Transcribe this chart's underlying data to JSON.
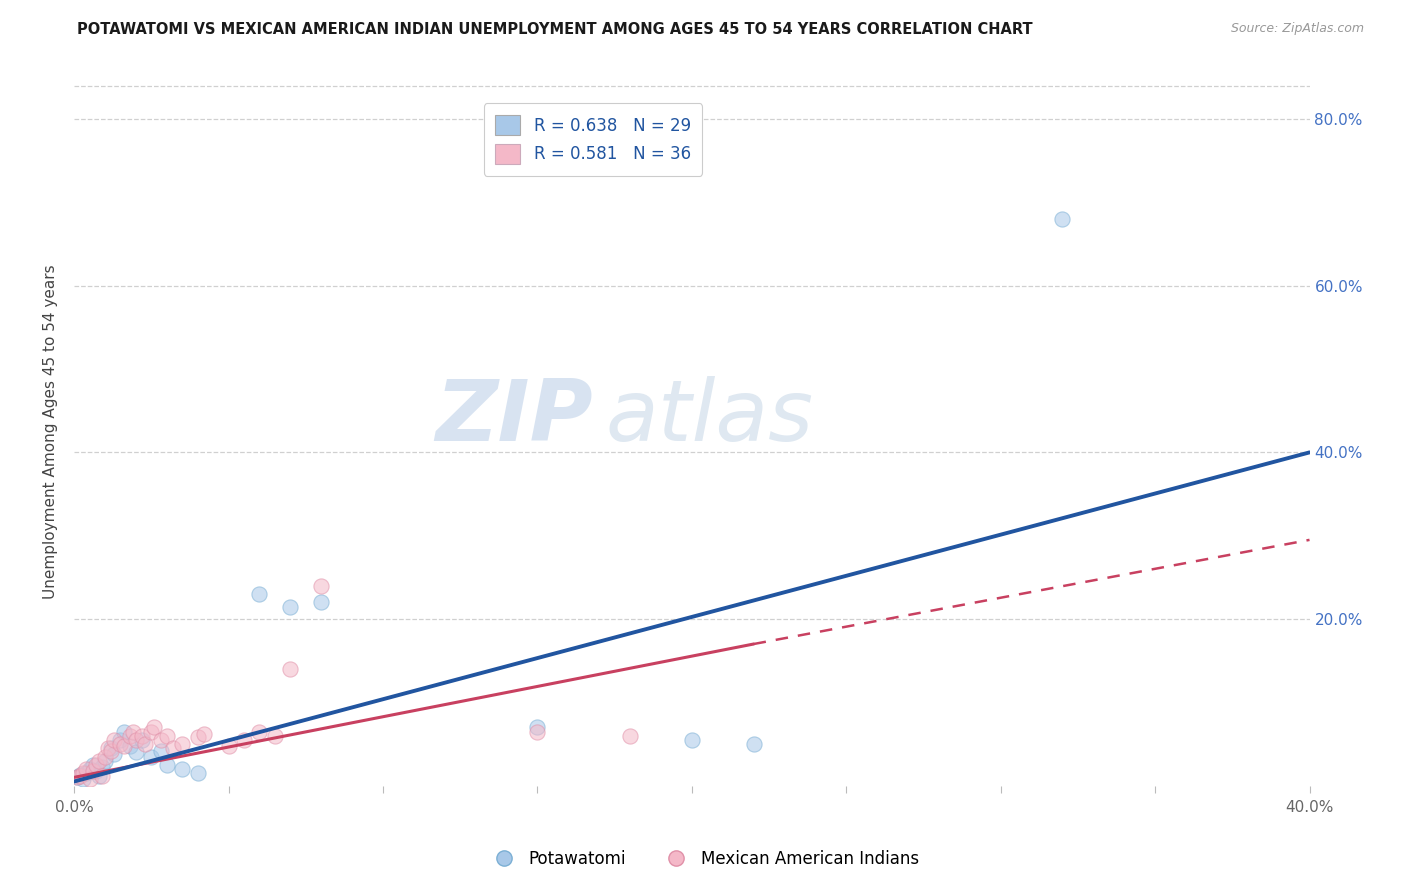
{
  "title": "POTAWATOMI VS MEXICAN AMERICAN INDIAN UNEMPLOYMENT AMONG AGES 45 TO 54 YEARS CORRELATION CHART",
  "source": "Source: ZipAtlas.com",
  "ylabel": "Unemployment Among Ages 45 to 54 years",
  "xlim": [
    0.0,
    0.4
  ],
  "ylim": [
    0.0,
    0.85
  ],
  "xticks": [
    0.0,
    0.05,
    0.1,
    0.15,
    0.2,
    0.25,
    0.3,
    0.35,
    0.4
  ],
  "xticklabels": [
    "0.0%",
    "",
    "",
    "",
    "",
    "",
    "",
    "",
    "40.0%"
  ],
  "yticks": [
    0.0,
    0.2,
    0.4,
    0.6,
    0.8
  ],
  "yticklabels": [
    "",
    "20.0%",
    "40.0%",
    "60.0%",
    "80.0%"
  ],
  "right_ytick_color": "#4472c4",
  "grid_color": "#d0d0d0",
  "watermark_zip": "ZIP",
  "watermark_atlas": "atlas",
  "legend_R1": "R = 0.638",
  "legend_N1": "N = 29",
  "legend_R2": "R = 0.581",
  "legend_N2": "N = 36",
  "blue_scatter": [
    [
      0.001,
      0.01
    ],
    [
      0.002,
      0.013
    ],
    [
      0.003,
      0.008
    ],
    [
      0.004,
      0.015
    ],
    [
      0.005,
      0.02
    ],
    [
      0.006,
      0.025
    ],
    [
      0.007,
      0.018
    ],
    [
      0.008,
      0.012
    ],
    [
      0.009,
      0.022
    ],
    [
      0.01,
      0.03
    ],
    [
      0.012,
      0.045
    ],
    [
      0.013,
      0.038
    ],
    [
      0.015,
      0.055
    ],
    [
      0.016,
      0.065
    ],
    [
      0.018,
      0.048
    ],
    [
      0.02,
      0.04
    ],
    [
      0.022,
      0.055
    ],
    [
      0.025,
      0.035
    ],
    [
      0.028,
      0.042
    ],
    [
      0.03,
      0.025
    ],
    [
      0.035,
      0.02
    ],
    [
      0.04,
      0.015
    ],
    [
      0.06,
      0.23
    ],
    [
      0.07,
      0.215
    ],
    [
      0.08,
      0.22
    ],
    [
      0.15,
      0.07
    ],
    [
      0.2,
      0.055
    ],
    [
      0.22,
      0.05
    ],
    [
      0.32,
      0.68
    ]
  ],
  "pink_scatter": [
    [
      0.001,
      0.01
    ],
    [
      0.002,
      0.012
    ],
    [
      0.003,
      0.015
    ],
    [
      0.004,
      0.02
    ],
    [
      0.005,
      0.008
    ],
    [
      0.006,
      0.018
    ],
    [
      0.007,
      0.025
    ],
    [
      0.008,
      0.03
    ],
    [
      0.009,
      0.012
    ],
    [
      0.01,
      0.035
    ],
    [
      0.011,
      0.045
    ],
    [
      0.012,
      0.042
    ],
    [
      0.013,
      0.055
    ],
    [
      0.015,
      0.05
    ],
    [
      0.016,
      0.048
    ],
    [
      0.018,
      0.06
    ],
    [
      0.019,
      0.065
    ],
    [
      0.02,
      0.055
    ],
    [
      0.022,
      0.06
    ],
    [
      0.023,
      0.05
    ],
    [
      0.025,
      0.065
    ],
    [
      0.026,
      0.07
    ],
    [
      0.028,
      0.055
    ],
    [
      0.03,
      0.06
    ],
    [
      0.032,
      0.045
    ],
    [
      0.035,
      0.05
    ],
    [
      0.04,
      0.058
    ],
    [
      0.042,
      0.062
    ],
    [
      0.05,
      0.048
    ],
    [
      0.055,
      0.055
    ],
    [
      0.06,
      0.065
    ],
    [
      0.065,
      0.06
    ],
    [
      0.07,
      0.14
    ],
    [
      0.08,
      0.24
    ],
    [
      0.15,
      0.065
    ],
    [
      0.18,
      0.06
    ]
  ],
  "blue_line": [
    [
      0.0,
      0.005
    ],
    [
      0.4,
      0.4
    ]
  ],
  "pink_solid_line": [
    [
      0.0,
      0.01
    ],
    [
      0.22,
      0.17
    ]
  ],
  "pink_dashed_line": [
    [
      0.22,
      0.17
    ],
    [
      0.4,
      0.295
    ]
  ],
  "blue_color": "#a8c8e8",
  "pink_color": "#f4b8c8",
  "blue_scatter_edge": "#7bafd4",
  "pink_scatter_edge": "#e090a8",
  "blue_line_color": "#2155a0",
  "pink_line_color": "#c84060",
  "scatter_size": 120,
  "scatter_alpha": 0.55,
  "background_color": "#ffffff"
}
